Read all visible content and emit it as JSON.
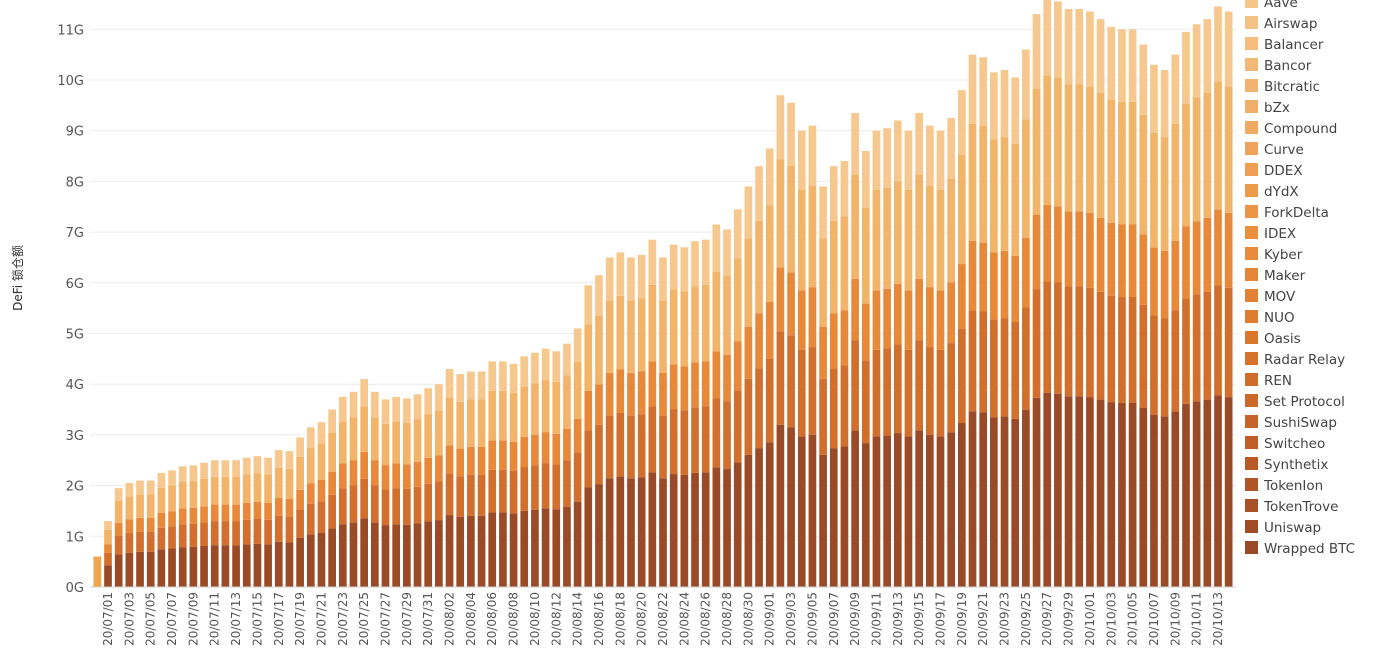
{
  "chart_data": {
    "type": "bar",
    "stacked": true,
    "ylabel": "DeFi 锁仓额",
    "ylim": [
      0,
      11.6
    ],
    "yunit": "G",
    "yticks": [
      "0G",
      "1G",
      "2G",
      "3G",
      "4G",
      "5G",
      "6G",
      "7G",
      "8G",
      "9G",
      "10G",
      "11G"
    ],
    "grid": true,
    "legend_position": "right",
    "date_labels": [
      "20/07/01",
      "20/07/03",
      "20/07/05",
      "20/07/07",
      "20/07/09",
      "20/07/11",
      "20/07/13",
      "20/07/15",
      "20/07/17",
      "20/07/19",
      "20/07/21",
      "20/07/23",
      "20/07/25",
      "20/07/27",
      "20/07/29",
      "20/07/31",
      "20/08/02",
      "20/08/04",
      "20/08/06",
      "20/08/08",
      "20/08/10",
      "20/08/12",
      "20/08/14",
      "20/08/16",
      "20/08/18",
      "20/08/20",
      "20/08/22",
      "20/08/24",
      "20/08/26",
      "20/08/28",
      "20/08/30",
      "20/09/01",
      "20/09/03",
      "20/09/05",
      "20/09/07",
      "20/09/09",
      "20/09/11",
      "20/09/13",
      "20/09/15",
      "20/09/17",
      "20/09/19",
      "20/09/21",
      "20/09/23",
      "20/09/25",
      "20/09/27",
      "20/09/29",
      "20/10/01",
      "20/10/03",
      "20/10/05",
      "20/10/07",
      "20/10/09",
      "20/10/11",
      "20/10/13"
    ],
    "totals": [
      0.6,
      1.3,
      1.95,
      2.05,
      2.1,
      2.1,
      2.25,
      2.3,
      2.38,
      2.4,
      2.45,
      2.5,
      2.5,
      2.5,
      2.55,
      2.58,
      2.55,
      2.7,
      2.68,
      2.95,
      3.15,
      3.25,
      3.5,
      3.75,
      3.85,
      4.1,
      3.85,
      3.7,
      3.75,
      3.72,
      3.8,
      3.92,
      4.0,
      4.3,
      4.2,
      4.25,
      4.25,
      4.45,
      4.45,
      4.4,
      4.55,
      4.62,
      4.7,
      4.65,
      4.8,
      5.1,
      5.95,
      6.15,
      6.5,
      6.6,
      6.5,
      6.55,
      6.85,
      6.5,
      6.75,
      6.7,
      6.82,
      6.85,
      7.15,
      7.05,
      7.45,
      7.9,
      8.3,
      8.65,
      9.7,
      9.55,
      9.0,
      9.1,
      7.9,
      8.3,
      8.4,
      9.35,
      8.6,
      9.0,
      9.05,
      9.2,
      9.0,
      9.35,
      9.1,
      9.0,
      9.25,
      9.8,
      10.5,
      10.45,
      10.15,
      10.2,
      10.05,
      10.6,
      11.3,
      11.6,
      11.55,
      11.4,
      11.4,
      11.35,
      11.2,
      11.05,
      11.0,
      11.0,
      10.7,
      10.3,
      10.2,
      10.5,
      10.95,
      11.1,
      11.2,
      11.45,
      11.35
    ],
    "share_breakpoints": [
      0.33,
      0.52,
      0.65,
      0.87
    ],
    "series": [
      {
        "name": "Aave",
        "color": "#f5c68b"
      },
      {
        "name": "Airswap",
        "color": "#f5c285"
      },
      {
        "name": "Balancer",
        "color": "#f4bd7e"
      },
      {
        "name": "Bancor",
        "color": "#f3b877"
      },
      {
        "name": "Bitcratic",
        "color": "#f2b370"
      },
      {
        "name": "bZx",
        "color": "#f1ae69"
      },
      {
        "name": "Compound",
        "color": "#f0a962"
      },
      {
        "name": "Curve",
        "color": "#efa45b"
      },
      {
        "name": "DDEX",
        "color": "#ee9f54"
      },
      {
        "name": "dYdX",
        "color": "#ed9a4d"
      },
      {
        "name": "ForkDelta",
        "color": "#ec9546"
      },
      {
        "name": "IDEX",
        "color": "#eb903f"
      },
      {
        "name": "Kyber",
        "color": "#e88b3b"
      },
      {
        "name": "Maker",
        "color": "#e58637"
      },
      {
        "name": "MOV",
        "color": "#e28133"
      },
      {
        "name": "NUO",
        "color": "#de7c30"
      },
      {
        "name": "Oasis",
        "color": "#da772d"
      },
      {
        "name": "Radar Relay",
        "color": "#d6722b"
      },
      {
        "name": "REN",
        "color": "#d16d2a"
      },
      {
        "name": "Set Protocol",
        "color": "#cc6829"
      },
      {
        "name": "SushiSwap",
        "color": "#c66328"
      },
      {
        "name": "Switcheo",
        "color": "#bf5e27"
      },
      {
        "name": "Synthetix",
        "color": "#b85a27"
      },
      {
        "name": "TokenIon",
        "color": "#b05526"
      },
      {
        "name": "TokenTrove",
        "color": "#a85126"
      },
      {
        "name": "Uniswap",
        "color": "#a04d26"
      },
      {
        "name": "Wrapped BTC",
        "color": "#984926"
      }
    ],
    "band_colors": [
      "#9a4a26",
      "#d26f2c",
      "#e8893a",
      "#f2b469",
      "#f6c88e"
    ],
    "first_bar_color": "#f0a64f",
    "grid_color": "#ececec"
  }
}
